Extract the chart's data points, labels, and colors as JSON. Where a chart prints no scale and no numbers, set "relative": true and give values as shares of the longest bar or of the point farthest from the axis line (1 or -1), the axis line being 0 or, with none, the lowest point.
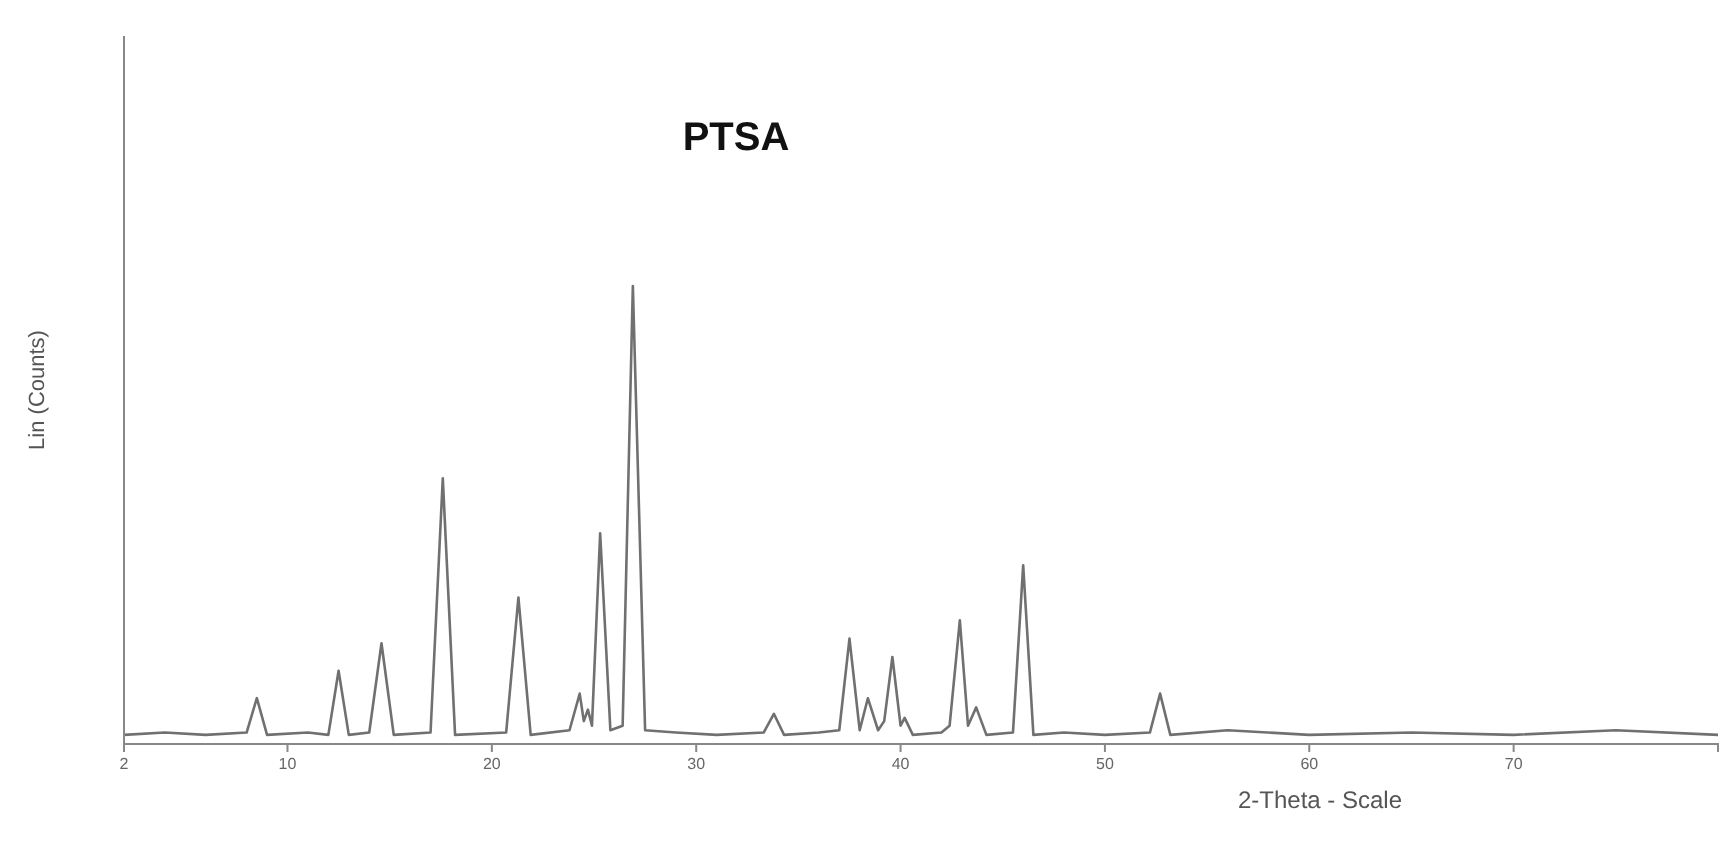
{
  "chart_data": {
    "type": "line",
    "title": "PTSA",
    "xlabel": "2-Theta - Scale",
    "ylabel": "Lin (Counts)",
    "relative": true,
    "color": "#707070",
    "x": [
      2,
      4,
      6,
      8,
      8.5,
      9,
      11,
      12,
      12.5,
      13,
      14,
      14.6,
      15.2,
      17,
      17.6,
      18.2,
      20.7,
      21.3,
      21.9,
      23.8,
      24.3,
      24.5,
      24.7,
      24.9,
      25.3,
      25.8,
      26.4,
      26.9,
      27.5,
      29,
      31,
      33.3,
      33.8,
      34.3,
      36,
      37,
      37.5,
      38,
      38.4,
      38.9,
      39.2,
      39.6,
      40,
      40.2,
      40.6,
      42,
      42.4,
      42.9,
      43.3,
      43.7,
      44.2,
      45.5,
      46,
      46.5,
      48,
      50,
      52.2,
      52.7,
      53.2,
      56,
      60,
      65,
      70,
      75,
      80
    ],
    "values": [
      0.02,
      0.025,
      0.02,
      0.025,
      0.1,
      0.02,
      0.025,
      0.02,
      0.16,
      0.02,
      0.025,
      0.22,
      0.02,
      0.025,
      0.58,
      0.02,
      0.025,
      0.32,
      0.02,
      0.03,
      0.11,
      0.05,
      0.075,
      0.04,
      0.46,
      0.03,
      0.04,
      1,
      0.03,
      0.025,
      0.02,
      0.025,
      0.066,
      0.02,
      0.025,
      0.03,
      0.23,
      0.03,
      0.1,
      0.03,
      0.05,
      0.19,
      0.04,
      0.057,
      0.02,
      0.025,
      0.04,
      0.27,
      0.04,
      0.08,
      0.02,
      0.025,
      0.39,
      0.02,
      0.025,
      0.02,
      0.025,
      0.11,
      0.02,
      0.03,
      0.02,
      0.025,
      0.02,
      0.03,
      0.02
    ],
    "xlim": [
      2,
      80
    ],
    "xticks": [
      2,
      10,
      20,
      30,
      40,
      50,
      60,
      70
    ],
    "grid": false
  }
}
